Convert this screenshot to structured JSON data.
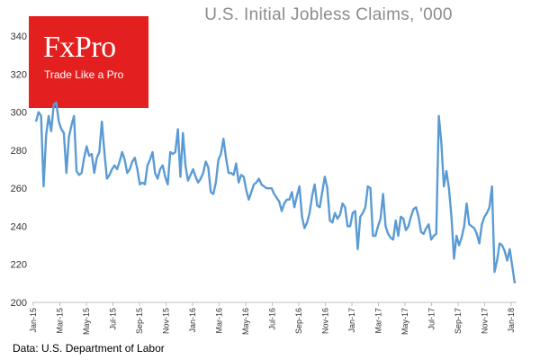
{
  "logo": {
    "name": "FxPro",
    "tagline": "Trade Like a Pro"
  },
  "source": "Data: U.S. Department of Labor",
  "chart_data": {
    "type": "line",
    "title": "U.S. Initial Jobless Claims, '000",
    "xlabel": "",
    "ylabel": "",
    "ylim": [
      200,
      340
    ],
    "yticks": [
      200,
      220,
      240,
      260,
      280,
      300,
      320,
      340
    ],
    "xtick_labels": [
      "Jan-15",
      "Mar-15",
      "May-15",
      "Jul-15",
      "Sep-15",
      "Nov-15",
      "Jan-16",
      "Mar-16",
      "May-16",
      "Jul-16",
      "Sep-16",
      "Nov-16",
      "Jan-17",
      "Mar-17",
      "May-17",
      "Jul-17",
      "Sep-17",
      "Nov-17",
      "Jan-18"
    ],
    "grid": false,
    "legend": "none",
    "color": "#5b9bd5",
    "series": [
      {
        "values": [
          295,
          300,
          298,
          261,
          288,
          298,
          290,
          304,
          305,
          295,
          291,
          289,
          268,
          287,
          293,
          298,
          269,
          267,
          268,
          276,
          282,
          277,
          278,
          268,
          276,
          279,
          295,
          279,
          265,
          267,
          270,
          272,
          270,
          274,
          279,
          275,
          268,
          270,
          274,
          276,
          270,
          262,
          263,
          262,
          272,
          275,
          279,
          268,
          265,
          270,
          272,
          266,
          262,
          279,
          278,
          279,
          291,
          266,
          289,
          272,
          264,
          267,
          270,
          266,
          263,
          265,
          268,
          274,
          271,
          258,
          257,
          263,
          275,
          278,
          286,
          276,
          268,
          268,
          267,
          273,
          263,
          267,
          266,
          259,
          254,
          258,
          262,
          263,
          265,
          262,
          261,
          260,
          260,
          260,
          257,
          255,
          253,
          248,
          252,
          254,
          254,
          258,
          250,
          256,
          261,
          245,
          239,
          242,
          247,
          256,
          262,
          251,
          250,
          258,
          266,
          260,
          243,
          242,
          247,
          244,
          246,
          252,
          250,
          240,
          240,
          247,
          248,
          228,
          245,
          247,
          250,
          261,
          260,
          235,
          235,
          240,
          244,
          257,
          240,
          236,
          234,
          233,
          243,
          235,
          245,
          244,
          238,
          240,
          245,
          249,
          250,
          245,
          237,
          236,
          239,
          241,
          233,
          235,
          236,
          298,
          284,
          261,
          269,
          260,
          245,
          223,
          235,
          230,
          234,
          240,
          252,
          241,
          240,
          239,
          236,
          231,
          241,
          245,
          247,
          250,
          261,
          216,
          222,
          231,
          230,
          227,
          222,
          228,
          219,
          210
        ]
      }
    ]
  }
}
